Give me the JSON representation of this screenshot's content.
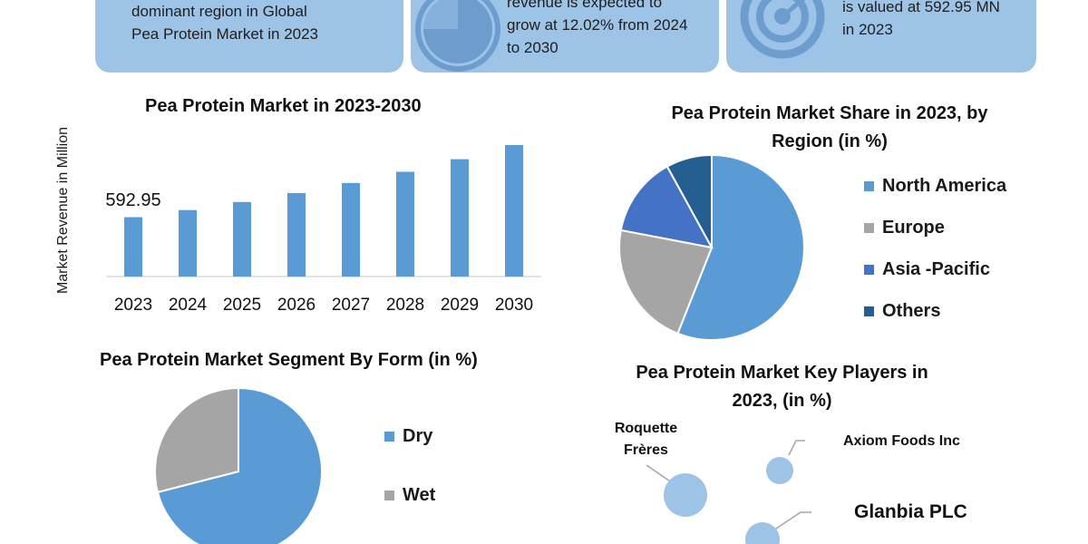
{
  "cards": [
    {
      "lines": [
        "dominant region in Global",
        "Pea Protein Market in 2023"
      ]
    },
    {
      "lines": [
        "revenue is expected to",
        "grow at 12.02% from 2024",
        "to 2030"
      ]
    },
    {
      "lines": [
        "is valued at 592.95 MN",
        "in 2023"
      ]
    }
  ],
  "icons": [
    "pie-chart-icon",
    "target-icon"
  ],
  "colors": {
    "card": "#9dc3e6",
    "blue": "#5b9bd5",
    "gray": "#a5a5a5",
    "royal": "#4472c4",
    "navy": "#255e91"
  },
  "chart_data": [
    {
      "type": "bar",
      "title": "Pea Protein Market in 2023-2030",
      "ylabel": "Market Revenue in Million",
      "categories": [
        "2023",
        "2024",
        "2025",
        "2026",
        "2027",
        "2028",
        "2029",
        "2030"
      ],
      "values": [
        592.95,
        664,
        744,
        834,
        934,
        1046,
        1172,
        1313
      ],
      "data_labels": [
        "592.95"
      ],
      "ylim": [
        0,
        1400
      ],
      "grid": false
    },
    {
      "type": "pie",
      "title": "Pea Protein Market Share in 2023, by Region (in %)",
      "title_lines": [
        "Pea Protein Market Share in 2023, by",
        "Region (in %)"
      ],
      "labels": [
        "North America",
        "Europe",
        "Asia -Pacific",
        "Others"
      ],
      "values": [
        56,
        22,
        14,
        8
      ],
      "legend": "right"
    },
    {
      "type": "pie",
      "title": "Pea Protein Market Segment By Form (in %)",
      "labels": [
        "Dry",
        "Wet"
      ],
      "values": [
        71,
        29
      ],
      "legend": "right"
    },
    {
      "type": "scatter",
      "title": "Pea Protein Market Key Players in 2023, (in %)",
      "title_lines": [
        "Pea Protein Market Key Players in",
        "2023, (in %)"
      ],
      "labels": [
        "Roquette Frères",
        "Axiom Foods Inc",
        "Glanbia PLC"
      ],
      "label_lines": [
        [
          "Roquette",
          "Frères"
        ],
        [
          "Axiom Foods Inc"
        ],
        [
          "Glanbia PLC"
        ]
      ]
    }
  ]
}
